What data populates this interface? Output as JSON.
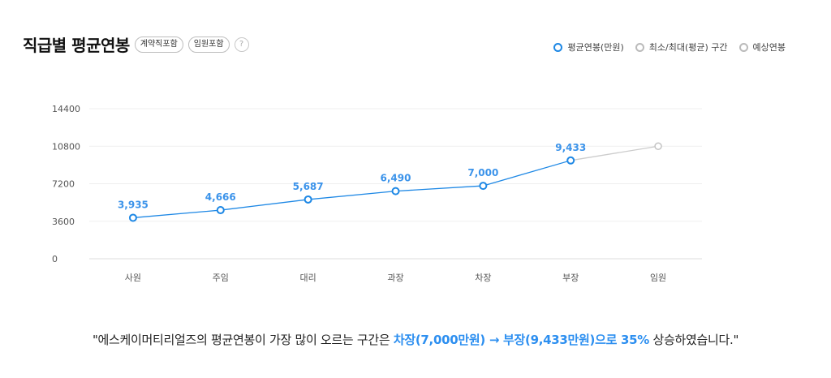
{
  "header": {
    "title": "직급별 평균연봉",
    "badges": [
      "계약직포함",
      "임원포함"
    ],
    "help_glyph": "?"
  },
  "legend": {
    "items": [
      {
        "label": "평균연봉(만원)",
        "color": "#1e88e5"
      },
      {
        "label": "최소/최대(평균) 구간",
        "color": "#bbbbbb"
      },
      {
        "label": "예상연봉",
        "color": "#bbbbbb"
      }
    ]
  },
  "chart_data": {
    "type": "line",
    "categories": [
      "사원",
      "주임",
      "대리",
      "과장",
      "차장",
      "부장",
      "임원"
    ],
    "series": [
      {
        "values": [
          3935,
          4666,
          5687,
          6490,
          7000,
          9433,
          null
        ],
        "data_labels": [
          "3,935",
          "4,666",
          "5,687",
          "6,490",
          "7,000",
          "9,433",
          ""
        ],
        "color": "#1e88e5"
      },
      {
        "values": [
          null,
          null,
          null,
          null,
          null,
          9433,
          10800
        ],
        "color": "#cccccc"
      }
    ],
    "yticks": [
      "14400",
      "10800",
      "7200",
      "3600",
      "0"
    ],
    "ytick_values": [
      14400,
      10800,
      7200,
      3600,
      0
    ],
    "ylim": [
      0,
      14400
    ],
    "grid": true
  },
  "summary": {
    "prefix": "\"에스케이머티리얼즈의 평균연봉이 가장 많이 오르는 구간은 ",
    "highlight": "차장(7,000만원) → 부장(9,433만원)으로 35%",
    "suffix": " 상승하였습니다.\""
  }
}
